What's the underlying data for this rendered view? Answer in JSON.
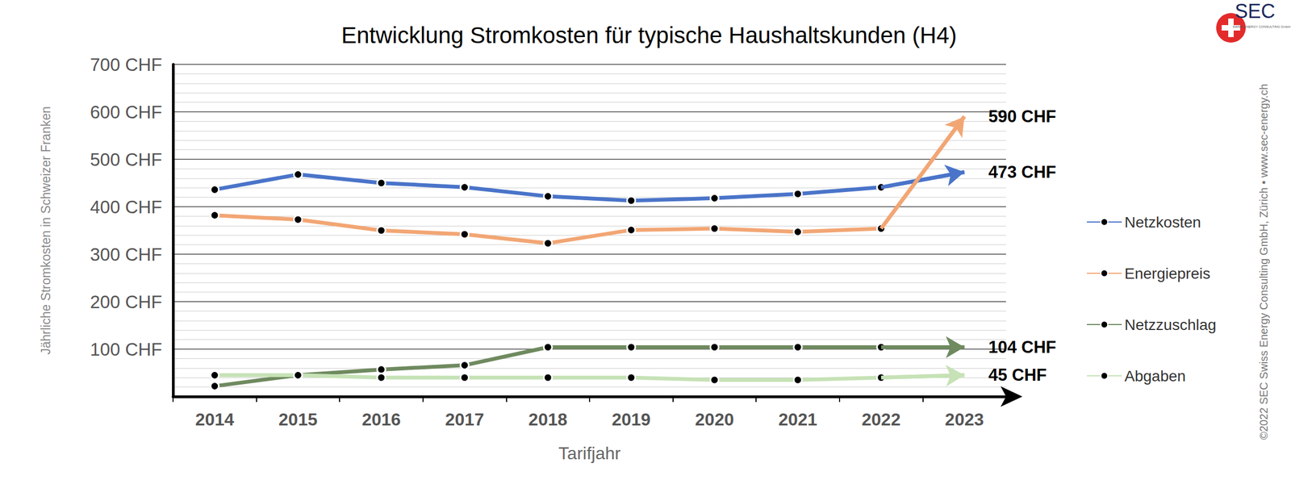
{
  "chart_data": {
    "type": "line",
    "title": "Entwicklung Stromkosten für typische Haushaltskunden (H4)",
    "x_label": "Tarifjahr",
    "y_label": "Jährliche Stromkosten in Schweizer Franken",
    "categories": [
      "2014",
      "2015",
      "2016",
      "2017",
      "2018",
      "2019",
      "2020",
      "2021",
      "2022",
      "2023"
    ],
    "series": [
      {
        "name": "Netzkosten",
        "color": "#4a74c9",
        "values": [
          436,
          468,
          450,
          441,
          422,
          413,
          418,
          427,
          441,
          473
        ],
        "value_labels": [
          null,
          null,
          null,
          null,
          null,
          null,
          null,
          null,
          null,
          "473 CHF"
        ]
      },
      {
        "name": "Energiepreis",
        "color": "#f2a674",
        "values": [
          382,
          373,
          350,
          342,
          323,
          351,
          354,
          347,
          354,
          590
        ],
        "value_labels": [
          null,
          null,
          null,
          null,
          null,
          null,
          null,
          null,
          null,
          "590 CHF"
        ]
      },
      {
        "name": "Netzzuschlag",
        "color": "#6f8a5f",
        "values": [
          22,
          45,
          57,
          66,
          104,
          104,
          104,
          104,
          104,
          104
        ],
        "value_labels": [
          null,
          null,
          null,
          null,
          null,
          null,
          null,
          null,
          null,
          "104 CHF"
        ]
      },
      {
        "name": "Abgaben",
        "color": "#c6e2b6",
        "values": [
          45,
          45,
          40,
          40,
          40,
          40,
          35,
          35,
          40,
          45
        ],
        "value_labels": [
          null,
          null,
          null,
          null,
          null,
          null,
          null,
          null,
          null,
          "45 CHF"
        ]
      }
    ],
    "ylim": [
      0,
      700
    ],
    "yticks": [
      {
        "value": 100,
        "label": "100 CHF"
      },
      {
        "value": 200,
        "label": "200 CHF"
      },
      {
        "value": 300,
        "label": "300 CHF"
      },
      {
        "value": 400,
        "label": "400 CHF"
      },
      {
        "value": 500,
        "label": "500 CHF"
      },
      {
        "value": 600,
        "label": "600 CHF"
      },
      {
        "value": 700,
        "label": "700 CHF"
      }
    ],
    "grid": true,
    "legend": "right",
    "marker": "circle",
    "data_labels": true,
    "annotations": [
      "SEC",
      "SWISS ENERGY CONSULTING GmbH",
      "©2022 SEC Swiss Energy Consulting GmbH, Zürich • www.sec-energy.ch"
    ]
  }
}
